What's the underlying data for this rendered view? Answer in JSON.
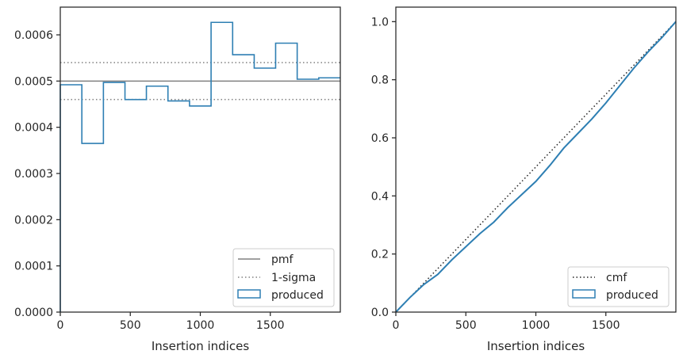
{
  "chart_data": [
    {
      "type": "step-histogram",
      "xlabel": "Insertion indices",
      "ylabel": "",
      "xlim": [
        0,
        2000
      ],
      "ylim": [
        0,
        0.00066
      ],
      "xticks": [
        0,
        500,
        1000,
        1500
      ],
      "xtick_labels": [
        "0",
        "500",
        "1000",
        "1500"
      ],
      "yticks": [
        0,
        0.0001,
        0.0002,
        0.0003,
        0.0004,
        0.0005,
        0.0006
      ],
      "ytick_labels": [
        "0.0000",
        "0.0001",
        "0.0002",
        "0.0003",
        "0.0004",
        "0.0005",
        "0.0006"
      ],
      "pmf": 0.0005,
      "sigma_lower": 0.00046,
      "sigma_upper": 0.00054,
      "bin_edges": [
        0,
        154,
        308,
        462,
        615,
        769,
        923,
        1077,
        1231,
        1385,
        1538,
        1692,
        1846,
        2000
      ],
      "values": [
        0.000492,
        0.000365,
        0.000497,
        0.00046,
        0.000489,
        0.000457,
        0.000446,
        0.000627,
        0.000557,
        0.000528,
        0.000582,
        0.000504,
        0.000507
      ],
      "legend": {
        "position": "lower right",
        "entries": [
          {
            "label": "pmf",
            "style": "solid-gray"
          },
          {
            "label": "1-sigma",
            "style": "dotted-gray"
          },
          {
            "label": "produced",
            "style": "box-blue"
          }
        ]
      }
    },
    {
      "type": "line",
      "xlabel": "Insertion indices",
      "ylabel": "",
      "xlim": [
        0,
        2000
      ],
      "ylim": [
        0,
        1.05
      ],
      "xticks": [
        0,
        500,
        1000,
        1500
      ],
      "xtick_labels": [
        "0",
        "500",
        "1000",
        "1500"
      ],
      "yticks": [
        0,
        0.2,
        0.4,
        0.6,
        0.8,
        1.0
      ],
      "ytick_labels": [
        "0.0",
        "0.2",
        "0.4",
        "0.6",
        "0.8",
        "1.0"
      ],
      "series": [
        {
          "name": "cmf",
          "x": [
            0,
            2000
          ],
          "y": [
            0,
            1.0
          ]
        },
        {
          "name": "produced",
          "x": [
            0,
            100,
            200,
            300,
            400,
            500,
            600,
            700,
            800,
            900,
            1000,
            1100,
            1200,
            1300,
            1400,
            1500,
            1600,
            1700,
            1800,
            1900,
            2000
          ],
          "y": [
            0,
            0.05,
            0.095,
            0.13,
            0.18,
            0.225,
            0.27,
            0.31,
            0.36,
            0.405,
            0.45,
            0.505,
            0.565,
            0.615,
            0.665,
            0.72,
            0.78,
            0.84,
            0.895,
            0.945,
            1.0
          ]
        }
      ],
      "legend": {
        "position": "lower right",
        "entries": [
          {
            "label": "cmf",
            "style": "dotted-black"
          },
          {
            "label": "produced",
            "style": "box-blue"
          }
        ]
      }
    }
  ],
  "colors": {
    "produced": "#2e7fb3",
    "pmf": "#808080",
    "sigma": "#808080",
    "cmf": "#222222",
    "axes": "#262626"
  }
}
